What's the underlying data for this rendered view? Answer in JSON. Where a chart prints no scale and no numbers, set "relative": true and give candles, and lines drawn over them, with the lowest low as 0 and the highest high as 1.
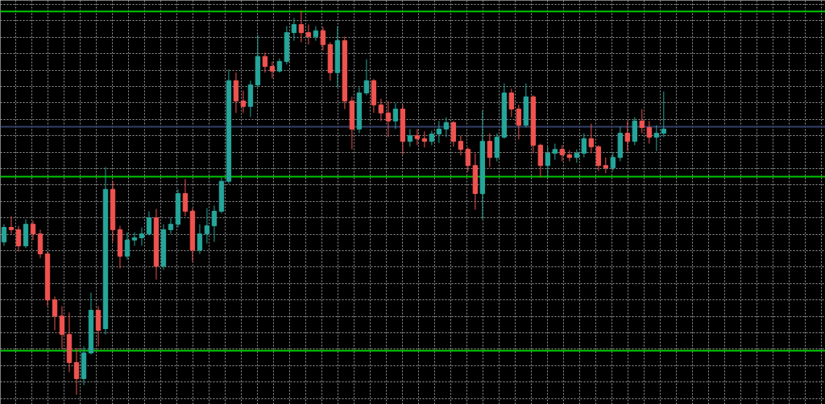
{
  "chart_data": {
    "type": "candlestick",
    "relative": true,
    "grid": true,
    "categories": [
      null,
      null,
      null,
      null,
      null,
      null,
      null,
      null,
      null,
      null,
      null,
      null,
      null,
      null,
      null,
      null,
      null,
      null,
      null,
      null,
      null,
      null,
      null,
      null,
      null,
      null,
      null,
      null,
      null,
      null,
      null,
      null,
      null,
      null,
      null,
      null,
      null,
      null,
      null,
      null,
      null,
      null,
      null,
      null,
      null,
      null,
      null,
      null,
      null,
      null,
      null,
      null,
      null,
      null,
      null,
      null,
      null,
      null,
      null,
      null,
      null,
      null,
      null,
      null,
      null,
      null,
      null,
      null,
      null,
      null,
      null,
      null,
      null,
      null,
      null,
      null,
      null,
      null,
      null,
      null,
      null,
      null,
      null,
      null,
      null,
      null,
      null,
      null,
      null,
      null,
      null,
      null
    ],
    "ohlc": [
      [
        0.398,
        0.444,
        0.388,
        0.436
      ],
      [
        0.436,
        0.465,
        0.419,
        0.43
      ],
      [
        0.43,
        0.44,
        0.373,
        0.388
      ],
      [
        0.388,
        0.457,
        0.382,
        0.444
      ],
      [
        0.444,
        0.453,
        0.403,
        0.419
      ],
      [
        0.419,
        0.43,
        0.356,
        0.367
      ],
      [
        0.367,
        0.373,
        0.231,
        0.247
      ],
      [
        0.247,
        0.256,
        0.168,
        0.205
      ],
      [
        0.205,
        0.231,
        0.119,
        0.157
      ],
      [
        0.157,
        0.214,
        0.059,
        0.084
      ],
      [
        0.084,
        0.122,
        0.0,
        0.042
      ],
      [
        0.042,
        0.126,
        0.025,
        0.109
      ],
      [
        0.109,
        0.266,
        0.105,
        0.22
      ],
      [
        0.22,
        0.231,
        0.126,
        0.168
      ],
      [
        0.172,
        0.593,
        0.157,
        0.535
      ],
      [
        0.535,
        0.556,
        0.398,
        0.43
      ],
      [
        0.43,
        0.44,
        0.329,
        0.361
      ],
      [
        0.361,
        0.423,
        0.352,
        0.403
      ],
      [
        0.403,
        0.423,
        0.388,
        0.409
      ],
      [
        0.409,
        0.436,
        0.388,
        0.419
      ],
      [
        0.419,
        0.478,
        0.415,
        0.461
      ],
      [
        0.461,
        0.484,
        0.3,
        0.335
      ],
      [
        0.335,
        0.444,
        0.325,
        0.43
      ],
      [
        0.43,
        0.461,
        0.419,
        0.444
      ],
      [
        0.444,
        0.535,
        0.436,
        0.524
      ],
      [
        0.524,
        0.562,
        0.465,
        0.478
      ],
      [
        0.478,
        0.486,
        0.346,
        0.377
      ],
      [
        0.377,
        0.444,
        0.367,
        0.419
      ],
      [
        0.419,
        0.486,
        0.394,
        0.44
      ],
      [
        0.44,
        0.493,
        0.398,
        0.478
      ],
      [
        0.478,
        0.566,
        0.472,
        0.556
      ],
      [
        0.556,
        0.847,
        0.549,
        0.818
      ],
      [
        0.818,
        0.839,
        0.734,
        0.765
      ],
      [
        0.765,
        0.792,
        0.734,
        0.751
      ],
      [
        0.751,
        0.818,
        0.723,
        0.807
      ],
      [
        0.807,
        0.937,
        0.801,
        0.881
      ],
      [
        0.881,
        0.891,
        0.839,
        0.855
      ],
      [
        0.855,
        0.868,
        0.824,
        0.843
      ],
      [
        0.843,
        0.876,
        0.839,
        0.868
      ],
      [
        0.868,
        0.96,
        0.86,
        0.943
      ],
      [
        0.943,
        0.981,
        0.922,
        0.964
      ],
      [
        0.964,
        1.0,
        0.918,
        0.943
      ],
      [
        0.943,
        0.964,
        0.912,
        0.933
      ],
      [
        0.933,
        0.96,
        0.922,
        0.948
      ],
      [
        0.948,
        0.958,
        0.897,
        0.912
      ],
      [
        0.912,
        0.918,
        0.818,
        0.839
      ],
      [
        0.839,
        0.96,
        0.801,
        0.922
      ],
      [
        0.922,
        0.933,
        0.744,
        0.765
      ],
      [
        0.765,
        0.776,
        0.639,
        0.692
      ],
      [
        0.692,
        0.801,
        0.681,
        0.786
      ],
      [
        0.786,
        0.874,
        0.78,
        0.818
      ],
      [
        0.818,
        0.822,
        0.734,
        0.755
      ],
      [
        0.755,
        0.771,
        0.713,
        0.734
      ],
      [
        0.734,
        0.765,
        0.671,
        0.713
      ],
      [
        0.713,
        0.759,
        0.692,
        0.744
      ],
      [
        0.744,
        0.755,
        0.625,
        0.66
      ],
      [
        0.66,
        0.692,
        0.646,
        0.675
      ],
      [
        0.675,
        0.692,
        0.65,
        0.667
      ],
      [
        0.667,
        0.686,
        0.644,
        0.66
      ],
      [
        0.66,
        0.688,
        0.65,
        0.679
      ],
      [
        0.679,
        0.713,
        0.656,
        0.692
      ],
      [
        0.692,
        0.723,
        0.671,
        0.709
      ],
      [
        0.709,
        0.713,
        0.646,
        0.66
      ],
      [
        0.66,
        0.675,
        0.623,
        0.639
      ],
      [
        0.639,
        0.644,
        0.581,
        0.597
      ],
      [
        0.597,
        0.629,
        0.482,
        0.524
      ],
      [
        0.524,
        0.74,
        0.457,
        0.66
      ],
      [
        0.66,
        0.681,
        0.593,
        0.618
      ],
      [
        0.618,
        0.681,
        0.608,
        0.671
      ],
      [
        0.671,
        0.811,
        0.667,
        0.786
      ],
      [
        0.786,
        0.797,
        0.723,
        0.744
      ],
      [
        0.744,
        0.755,
        0.665,
        0.702
      ],
      [
        0.702,
        0.811,
        0.696,
        0.776
      ],
      [
        0.776,
        0.78,
        0.629,
        0.65
      ],
      [
        0.65,
        0.654,
        0.566,
        0.597
      ],
      [
        0.597,
        0.646,
        0.566,
        0.629
      ],
      [
        0.629,
        0.654,
        0.612,
        0.639
      ],
      [
        0.639,
        0.65,
        0.608,
        0.625
      ],
      [
        0.625,
        0.637,
        0.608,
        0.618
      ],
      [
        0.618,
        0.639,
        0.604,
        0.629
      ],
      [
        0.629,
        0.681,
        0.618,
        0.667
      ],
      [
        0.667,
        0.706,
        0.629,
        0.646
      ],
      [
        0.646,
        0.65,
        0.583,
        0.597
      ],
      [
        0.597,
        0.618,
        0.577,
        0.591
      ],
      [
        0.591,
        0.629,
        0.583,
        0.618
      ],
      [
        0.618,
        0.698,
        0.608,
        0.681
      ],
      [
        0.681,
        0.713,
        0.635,
        0.66
      ],
      [
        0.66,
        0.723,
        0.65,
        0.713
      ],
      [
        0.713,
        0.744,
        0.681,
        0.696
      ],
      [
        0.696,
        0.713,
        0.654,
        0.671
      ],
      [
        0.671,
        0.702,
        0.635,
        0.681
      ],
      [
        0.681,
        0.79,
        0.671,
        0.692
      ]
    ],
    "colors": [
      "#26a69a",
      "#ef5350",
      "#ef5350",
      "#26a69a",
      "#ef5350",
      "#ef5350",
      "#ef5350",
      "#ef5350",
      "#ef5350",
      "#ef5350",
      "#ef5350",
      "#26a69a",
      "#26a69a",
      "#ef5350",
      "#26a69a",
      "#ef5350",
      "#ef5350",
      "#26a69a",
      "#26a69a",
      "#26a69a",
      "#26a69a",
      "#ef5350",
      "#26a69a",
      "#26a69a",
      "#26a69a",
      "#ef5350",
      "#ef5350",
      "#26a69a",
      "#26a69a",
      "#26a69a",
      "#26a69a",
      "#26a69a",
      "#ef5350",
      "#ef5350",
      "#26a69a",
      "#26a69a",
      "#ef5350",
      "#ef5350",
      "#26a69a",
      "#26a69a",
      "#26a69a",
      "#ef5350",
      "#ef5350",
      "#26a69a",
      "#ef5350",
      "#ef5350",
      "#26a69a",
      "#ef5350",
      "#ef5350",
      "#26a69a",
      "#26a69a",
      "#ef5350",
      "#ef5350",
      "#ef5350",
      "#26a69a",
      "#ef5350",
      "#26a69a",
      "#ef5350",
      "#ef5350",
      "#26a69a",
      "#26a69a",
      "#26a69a",
      "#ef5350",
      "#ef5350",
      "#ef5350",
      "#ef5350",
      "#26a69a",
      "#ef5350",
      "#26a69a",
      "#26a69a",
      "#ef5350",
      "#ef5350",
      "#26a69a",
      "#ef5350",
      "#ef5350",
      "#26a69a",
      "#26a69a",
      "#ef5350",
      "#ef5350",
      "#26a69a",
      "#26a69a",
      "#ef5350",
      "#ef5350",
      "#ef5350",
      "#26a69a",
      "#26a69a",
      "#ef5350",
      "#26a69a",
      "#ef5350",
      "#ef5350",
      "#26a69a",
      "#26a69a"
    ],
    "ref_lines": [
      {
        "axis": "y",
        "value": 0.998,
        "color": "#00c800"
      },
      {
        "axis": "y",
        "value": 0.698,
        "color": "#34406a"
      },
      {
        "axis": "y",
        "value": 0.568,
        "color": "#00c800"
      },
      {
        "axis": "y",
        "value": 0.115,
        "color": "#00c800"
      }
    ]
  }
}
